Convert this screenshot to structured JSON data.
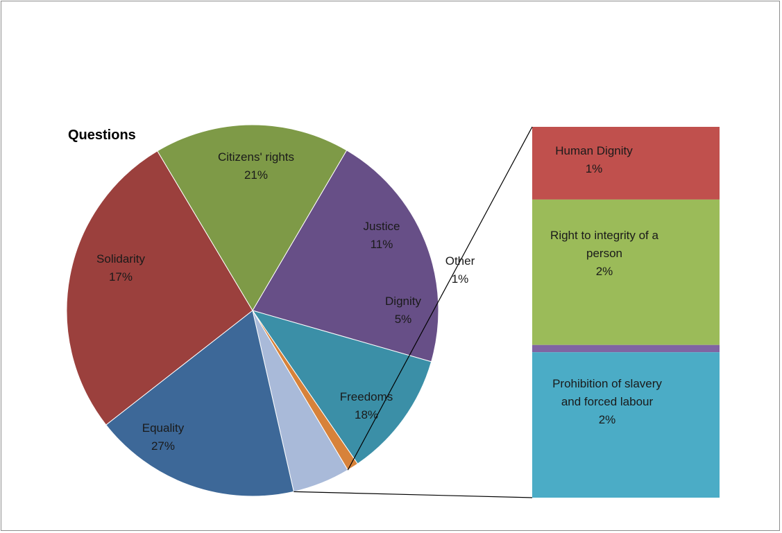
{
  "chart_data": {
    "type": "bar-of-pie",
    "title": "Questions",
    "pie": {
      "slices": [
        {
          "name": "Citizens' rights",
          "value": 21,
          "label": "21%",
          "color": "#674f87"
        },
        {
          "name": "Justice",
          "value": 11,
          "label": "11%",
          "color": "#3b8fa7"
        },
        {
          "name": "Other",
          "value": 1,
          "label": "1%",
          "color": "#d7823a"
        },
        {
          "name": "Dignity",
          "value": 5,
          "label": "5%",
          "color": "#a9bad9"
        },
        {
          "name": "Freedoms",
          "value": 18,
          "label": "18%",
          "color": "#3d6898"
        },
        {
          "name": "Equality",
          "value": 27,
          "label": "27%",
          "color": "#9b403d"
        },
        {
          "name": "Solidarity",
          "value": 17,
          "label": "17%",
          "color": "#7e9a47"
        }
      ]
    },
    "bar": {
      "parent": "Dignity",
      "segments": [
        {
          "name": "Human Dignity",
          "value": 1,
          "label": "1%",
          "color": "#c0504d"
        },
        {
          "name": "Right to integrity of a person",
          "value": 2,
          "label": "2%",
          "color": "#9bbb59"
        },
        {
          "name": "",
          "value": 0.1,
          "label": "",
          "color": "#8064a2"
        },
        {
          "name": "Prohibition of slavery and forced labour",
          "value": 2,
          "label": "2%",
          "color": "#4bacc6"
        }
      ]
    }
  }
}
